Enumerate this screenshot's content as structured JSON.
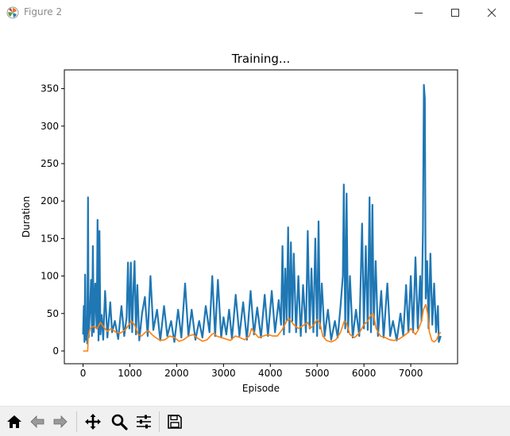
{
  "window": {
    "title": "Figure 2",
    "controls": [
      "minimize",
      "maximize",
      "close"
    ]
  },
  "toolbar": {
    "buttons": [
      {
        "name": "home-button",
        "icon": "home-icon"
      },
      {
        "name": "back-button",
        "icon": "back-arrow-icon"
      },
      {
        "name": "forward-button",
        "icon": "forward-arrow-icon"
      },
      {
        "name": "pan-button",
        "icon": "move-icon"
      },
      {
        "name": "zoom-button",
        "icon": "magnifier-icon"
      },
      {
        "name": "configure-subplots-button",
        "icon": "sliders-icon"
      },
      {
        "name": "save-button",
        "icon": "floppy-disk-icon"
      }
    ]
  },
  "chart_data": {
    "type": "line",
    "title": "Training...",
    "xlabel": "Episode",
    "ylabel": "Duration",
    "xlim": [
      -400,
      8000
    ],
    "ylim": [
      -17,
      375
    ],
    "xticks": [
      0,
      1000,
      2000,
      3000,
      4000,
      5000,
      6000,
      7000
    ],
    "yticks": [
      0,
      50,
      100,
      150,
      200,
      250,
      300,
      350
    ],
    "grid": false,
    "series": [
      {
        "color": "#1f77b4",
        "points": [
          [
            0,
            22
          ],
          [
            15,
            60
          ],
          [
            30,
            12
          ],
          [
            45,
            102
          ],
          [
            60,
            15
          ],
          [
            75,
            45
          ],
          [
            90,
            10
          ],
          [
            105,
            205
          ],
          [
            120,
            18
          ],
          [
            150,
            58
          ],
          [
            170,
            95
          ],
          [
            190,
            20
          ],
          [
            210,
            140
          ],
          [
            230,
            25
          ],
          [
            260,
            90
          ],
          [
            290,
            30
          ],
          [
            310,
            175
          ],
          [
            330,
            14
          ],
          [
            350,
            160
          ],
          [
            370,
            22
          ],
          [
            400,
            48
          ],
          [
            430,
            15
          ],
          [
            470,
            80
          ],
          [
            520,
            18
          ],
          [
            580,
            65
          ],
          [
            620,
            25
          ],
          [
            680,
            40
          ],
          [
            750,
            16
          ],
          [
            820,
            60
          ],
          [
            880,
            20
          ],
          [
            930,
            45
          ],
          [
            960,
            118
          ],
          [
            990,
            30
          ],
          [
            1020,
            118
          ],
          [
            1050,
            25
          ],
          [
            1080,
            90
          ],
          [
            1100,
            120
          ],
          [
            1130,
            22
          ],
          [
            1160,
            88
          ],
          [
            1200,
            14
          ],
          [
            1260,
            50
          ],
          [
            1320,
            72
          ],
          [
            1380,
            20
          ],
          [
            1440,
            100
          ],
          [
            1500,
            28
          ],
          [
            1580,
            55
          ],
          [
            1650,
            14
          ],
          [
            1730,
            60
          ],
          [
            1800,
            20
          ],
          [
            1880,
            40
          ],
          [
            1950,
            12
          ],
          [
            2030,
            55
          ],
          [
            2100,
            18
          ],
          [
            2180,
            90
          ],
          [
            2250,
            20
          ],
          [
            2320,
            55
          ],
          [
            2400,
            15
          ],
          [
            2480,
            40
          ],
          [
            2550,
            18
          ],
          [
            2620,
            60
          ],
          [
            2700,
            25
          ],
          [
            2760,
            100
          ],
          [
            2820,
            20
          ],
          [
            2880,
            95
          ],
          [
            2950,
            18
          ],
          [
            3000,
            45
          ],
          [
            3060,
            22
          ],
          [
            3120,
            55
          ],
          [
            3180,
            16
          ],
          [
            3260,
            75
          ],
          [
            3340,
            20
          ],
          [
            3420,
            65
          ],
          [
            3500,
            15
          ],
          [
            3580,
            80
          ],
          [
            3650,
            22
          ],
          [
            3720,
            58
          ],
          [
            3800,
            18
          ],
          [
            3880,
            75
          ],
          [
            3950,
            20
          ],
          [
            4030,
            80
          ],
          [
            4100,
            25
          ],
          [
            4180,
            68
          ],
          [
            4230,
            35
          ],
          [
            4260,
            140
          ],
          [
            4290,
            22
          ],
          [
            4320,
            110
          ],
          [
            4350,
            40
          ],
          [
            4380,
            165
          ],
          [
            4410,
            25
          ],
          [
            4440,
            145
          ],
          [
            4470,
            40
          ],
          [
            4500,
            130
          ],
          [
            4550,
            25
          ],
          [
            4600,
            100
          ],
          [
            4650,
            20
          ],
          [
            4700,
            88
          ],
          [
            4760,
            25
          ],
          [
            4800,
            160
          ],
          [
            4840,
            30
          ],
          [
            4880,
            110
          ],
          [
            4920,
            25
          ],
          [
            4960,
            150
          ],
          [
            5000,
            20
          ],
          [
            5030,
            173
          ],
          [
            5060,
            30
          ],
          [
            5100,
            90
          ],
          [
            5160,
            20
          ],
          [
            5230,
            55
          ],
          [
            5300,
            15
          ],
          [
            5380,
            40
          ],
          [
            5440,
            18
          ],
          [
            5500,
            60
          ],
          [
            5550,
            100
          ],
          [
            5570,
            222
          ],
          [
            5600,
            30
          ],
          [
            5630,
            210
          ],
          [
            5660,
            25
          ],
          [
            5700,
            100
          ],
          [
            5760,
            18
          ],
          [
            5830,
            55
          ],
          [
            5900,
            20
          ],
          [
            5960,
            170
          ],
          [
            6000,
            30
          ],
          [
            6040,
            140
          ],
          [
            6080,
            28
          ],
          [
            6120,
            205
          ],
          [
            6150,
            25
          ],
          [
            6180,
            195
          ],
          [
            6210,
            35
          ],
          [
            6250,
            120
          ],
          [
            6300,
            20
          ],
          [
            6370,
            80
          ],
          [
            6420,
            18
          ],
          [
            6500,
            90
          ],
          [
            6560,
            20
          ],
          [
            6620,
            40
          ],
          [
            6700,
            14
          ],
          [
            6780,
            50
          ],
          [
            6840,
            20
          ],
          [
            6900,
            88
          ],
          [
            6950,
            25
          ],
          [
            7000,
            100
          ],
          [
            7050,
            25
          ],
          [
            7100,
            125
          ],
          [
            7150,
            30
          ],
          [
            7200,
            100
          ],
          [
            7230,
            40
          ],
          [
            7260,
            160
          ],
          [
            7280,
            355
          ],
          [
            7300,
            337
          ],
          [
            7320,
            70
          ],
          [
            7350,
            120
          ],
          [
            7380,
            30
          ],
          [
            7420,
            130
          ],
          [
            7460,
            35
          ],
          [
            7500,
            90
          ],
          [
            7540,
            25
          ],
          [
            7580,
            60
          ],
          [
            7600,
            12
          ],
          [
            7640,
            20
          ]
        ]
      },
      {
        "color": "#ff7f0e",
        "points": [
          [
            0,
            0
          ],
          [
            99,
            0
          ],
          [
            110,
            20
          ],
          [
            150,
            30
          ],
          [
            220,
            33
          ],
          [
            300,
            30
          ],
          [
            370,
            38
          ],
          [
            440,
            32
          ],
          [
            520,
            26
          ],
          [
            600,
            30
          ],
          [
            700,
            25
          ],
          [
            800,
            24
          ],
          [
            900,
            28
          ],
          [
            980,
            35
          ],
          [
            1030,
            40
          ],
          [
            1100,
            35
          ],
          [
            1180,
            22
          ],
          [
            1250,
            20
          ],
          [
            1330,
            25
          ],
          [
            1400,
            27
          ],
          [
            1470,
            22
          ],
          [
            1550,
            18
          ],
          [
            1650,
            14
          ],
          [
            1750,
            15
          ],
          [
            1850,
            20
          ],
          [
            1950,
            18
          ],
          [
            2050,
            13
          ],
          [
            2150,
            15
          ],
          [
            2250,
            20
          ],
          [
            2350,
            22
          ],
          [
            2450,
            17
          ],
          [
            2550,
            13
          ],
          [
            2650,
            15
          ],
          [
            2750,
            22
          ],
          [
            2800,
            24
          ],
          [
            2850,
            20
          ],
          [
            2950,
            18
          ],
          [
            3050,
            16
          ],
          [
            3150,
            14
          ],
          [
            3250,
            20
          ],
          [
            3350,
            18
          ],
          [
            3450,
            15
          ],
          [
            3550,
            20
          ],
          [
            3600,
            30
          ],
          [
            3650,
            25
          ],
          [
            3750,
            18
          ],
          [
            3850,
            20
          ],
          [
            3950,
            22
          ],
          [
            4050,
            20
          ],
          [
            4150,
            20
          ],
          [
            4250,
            28
          ],
          [
            4350,
            40
          ],
          [
            4400,
            43
          ],
          [
            4500,
            35
          ],
          [
            4600,
            30
          ],
          [
            4700,
            34
          ],
          [
            4800,
            38
          ],
          [
            4850,
            30
          ],
          [
            4930,
            35
          ],
          [
            5000,
            42
          ],
          [
            5060,
            37
          ],
          [
            5120,
            20
          ],
          [
            5200,
            14
          ],
          [
            5300,
            12
          ],
          [
            5400,
            15
          ],
          [
            5500,
            25
          ],
          [
            5580,
            40
          ],
          [
            5620,
            38
          ],
          [
            5700,
            22
          ],
          [
            5800,
            18
          ],
          [
            5900,
            24
          ],
          [
            6000,
            35
          ],
          [
            6080,
            40
          ],
          [
            6150,
            48
          ],
          [
            6200,
            50
          ],
          [
            6260,
            30
          ],
          [
            6350,
            20
          ],
          [
            6450,
            18
          ],
          [
            6550,
            15
          ],
          [
            6650,
            14
          ],
          [
            6750,
            16
          ],
          [
            6850,
            20
          ],
          [
            6950,
            25
          ],
          [
            7000,
            30
          ],
          [
            7050,
            26
          ],
          [
            7100,
            22
          ],
          [
            7160,
            28
          ],
          [
            7230,
            40
          ],
          [
            7270,
            55
          ],
          [
            7320,
            62
          ],
          [
            7360,
            50
          ],
          [
            7400,
            25
          ],
          [
            7450,
            14
          ],
          [
            7500,
            12
          ],
          [
            7550,
            15
          ],
          [
            7600,
            22
          ],
          [
            7640,
            25
          ]
        ]
      }
    ]
  }
}
